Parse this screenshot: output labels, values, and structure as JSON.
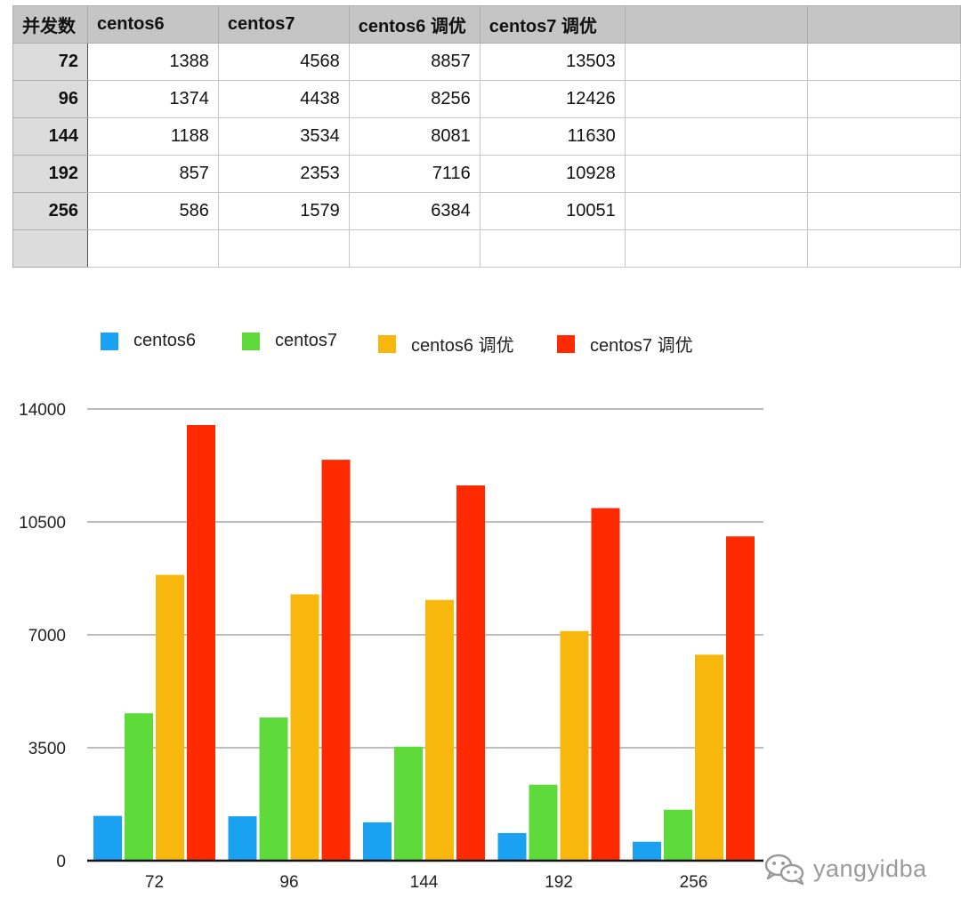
{
  "table": {
    "headers": [
      "并发数",
      "centos6",
      "centos7",
      "centos6 调优",
      "centos7 调优",
      "",
      ""
    ],
    "rows": [
      [
        "72",
        "1388",
        "4568",
        "8857",
        "13503"
      ],
      [
        "96",
        "1374",
        "4438",
        "8256",
        "12426"
      ],
      [
        "144",
        "1188",
        "3534",
        "8081",
        "11630"
      ],
      [
        "192",
        "857",
        "2353",
        "7116",
        "10928"
      ],
      [
        "256",
        "586",
        "1579",
        "6384",
        "10051"
      ],
      [
        "",
        "",
        "",
        "",
        ""
      ]
    ]
  },
  "chart_data": {
    "type": "bar",
    "categories": [
      "72",
      "96",
      "144",
      "192",
      "256"
    ],
    "series": [
      {
        "name": "centos6",
        "color": "#1ba1f2",
        "values": [
          1388,
          1374,
          1188,
          857,
          586
        ]
      },
      {
        "name": "centos7",
        "color": "#5edb3a",
        "values": [
          4568,
          4438,
          3534,
          2353,
          1579
        ]
      },
      {
        "name": "centos6 调优",
        "color": "#f8b70c",
        "values": [
          8857,
          8256,
          8081,
          7116,
          6384
        ]
      },
      {
        "name": "centos7 调优",
        "color": "#ff2a00",
        "values": [
          13503,
          12426,
          11630,
          10928,
          10051
        ]
      }
    ],
    "yticks": [
      "0",
      "3500",
      "7000",
      "10500",
      "14000"
    ],
    "ylim": [
      0,
      14000
    ],
    "grid": true,
    "legend_position": "top",
    "title": "",
    "xlabel": "",
    "ylabel": ""
  },
  "watermark": {
    "text": "yangyidba",
    "icon": "wechat-icon"
  }
}
